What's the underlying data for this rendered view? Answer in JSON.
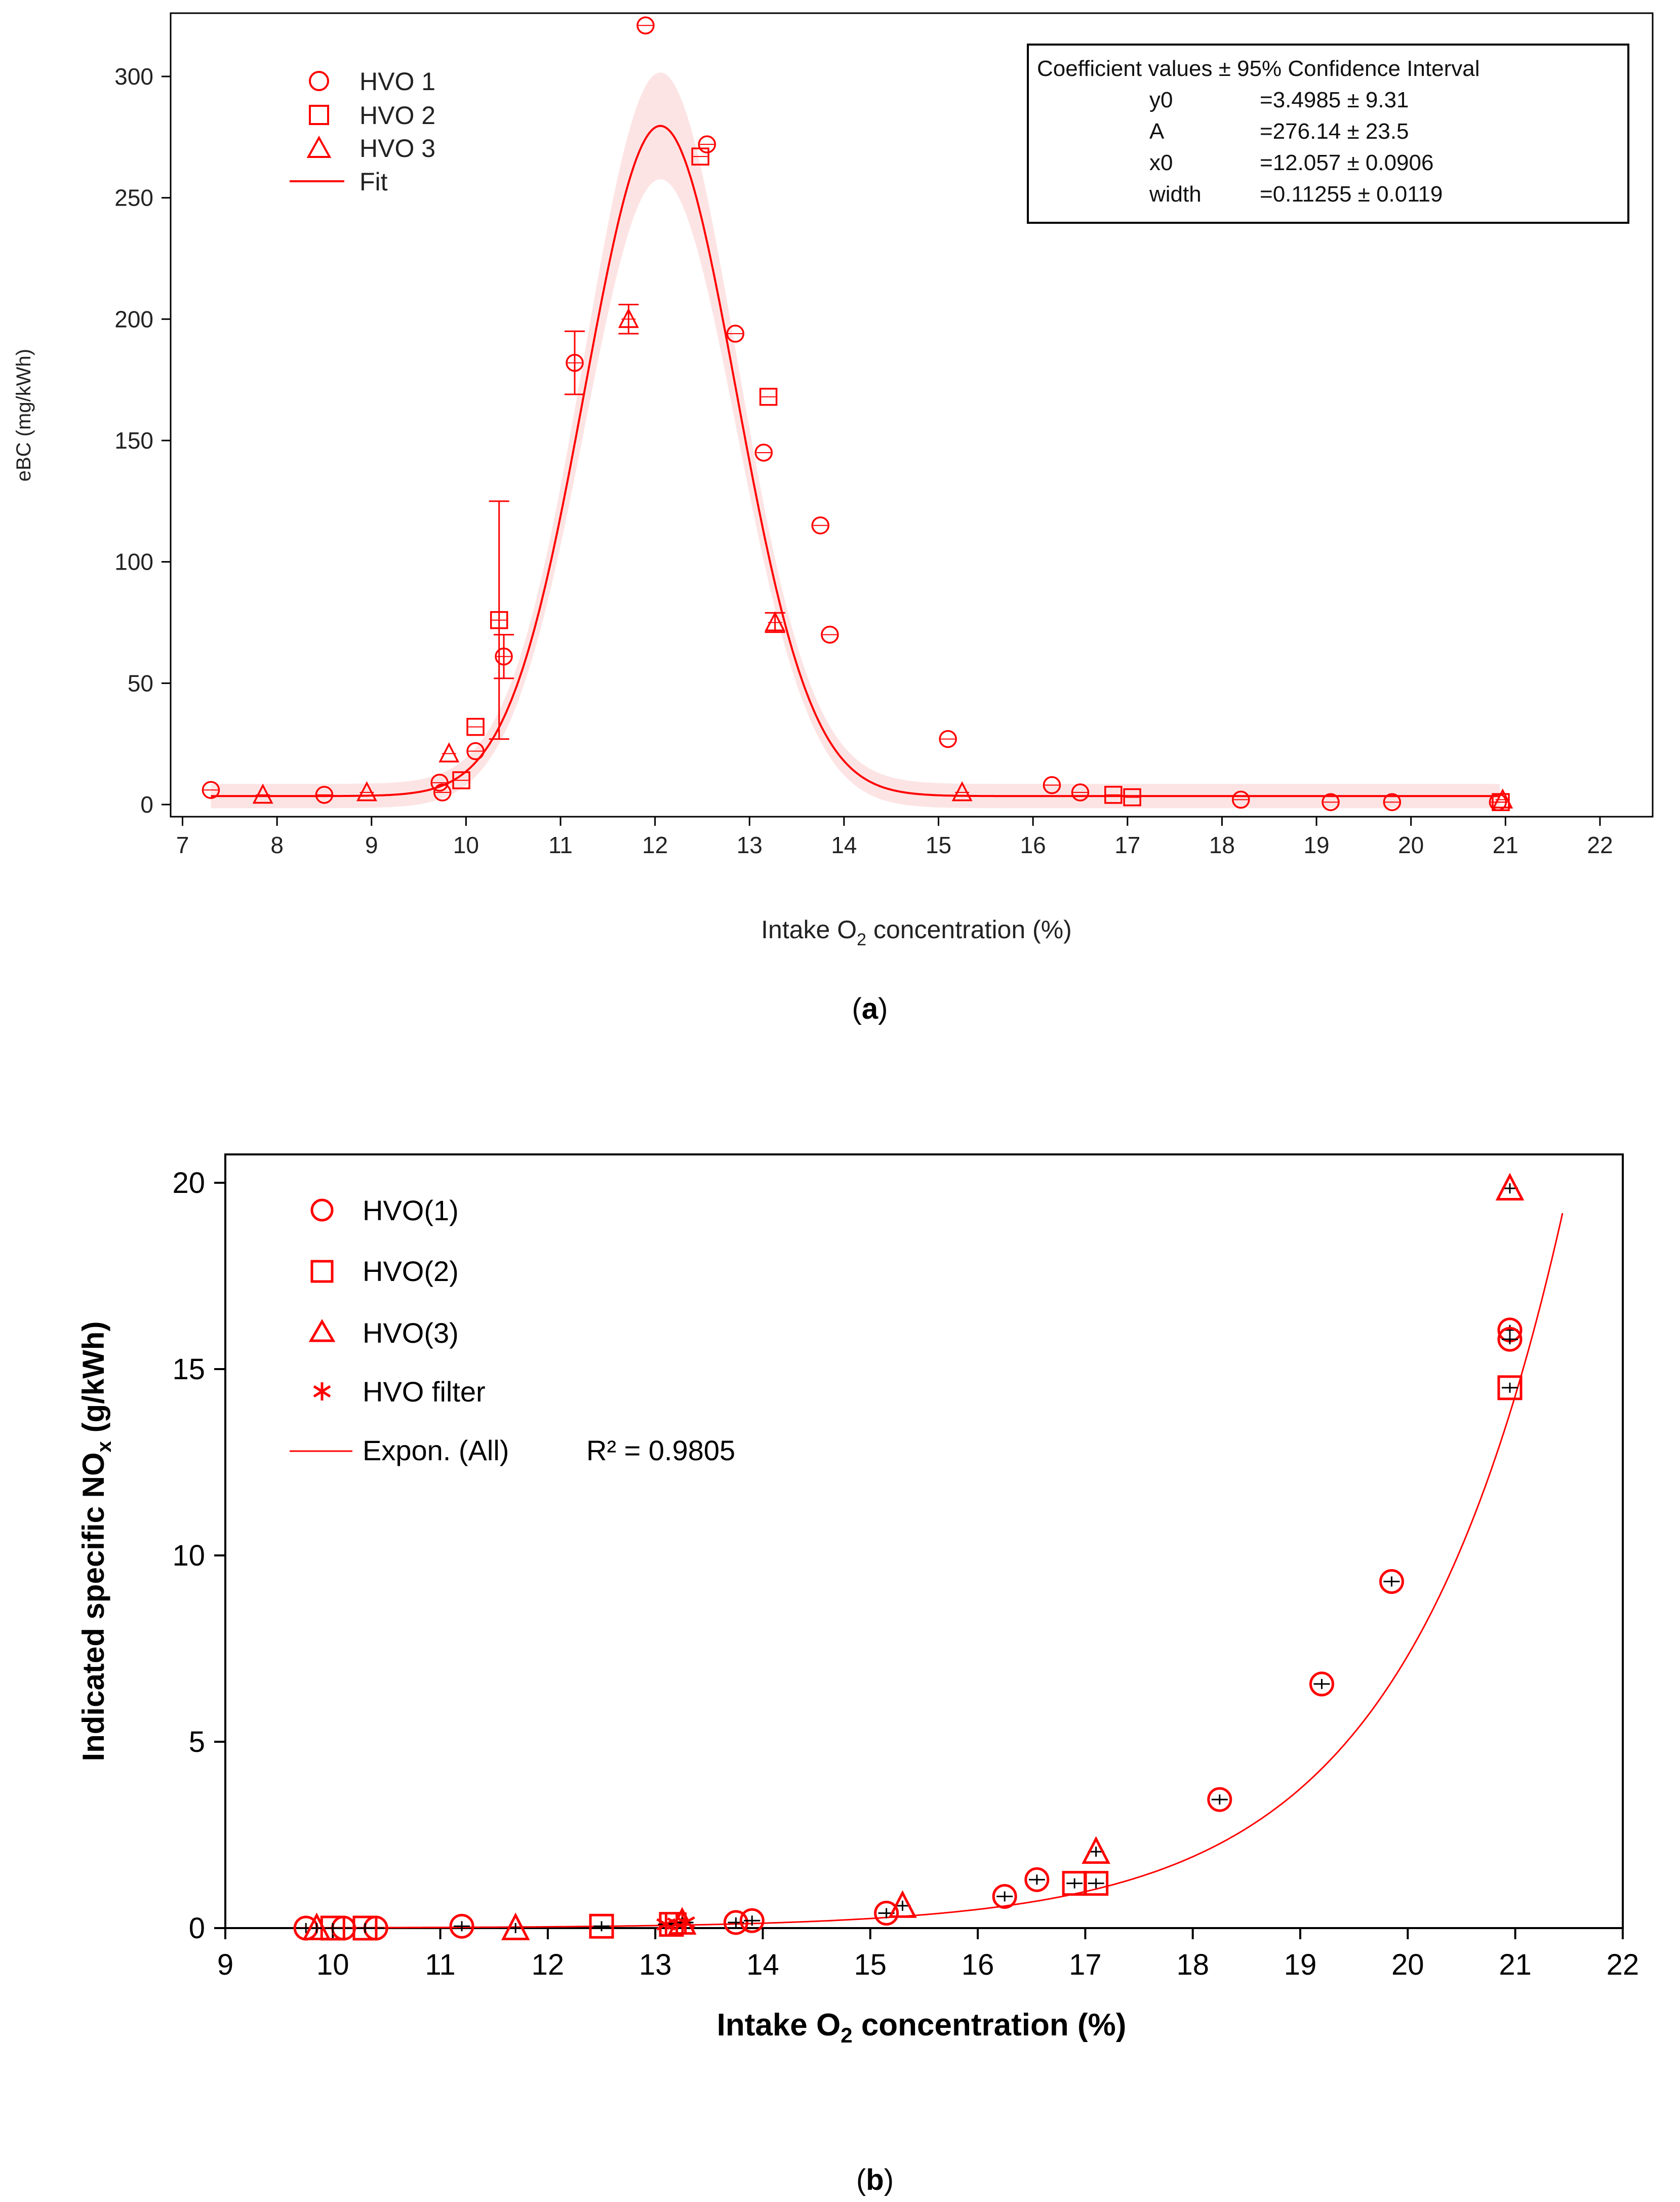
{
  "colors": {
    "accent": "#ff0000",
    "band": "#fde4e4",
    "axis": "#000000",
    "errbar_b": "#000000"
  },
  "chart_data": [
    {
      "id": "a",
      "caption_label": "a",
      "type": "scatter",
      "xlabel_main": "Intake O",
      "xlabel_sub": "2",
      "xlabel_tail": " concentration (%)",
      "ylabel": "eBC  (mg/kWh)",
      "xlim": [
        6.9,
        22.1
      ],
      "ylim": [
        -5,
        325
      ],
      "xticks": [
        7,
        8,
        9,
        10,
        11,
        12,
        13,
        14,
        15,
        16,
        17,
        18,
        19,
        20,
        21,
        22
      ],
      "yticks": [
        0,
        50,
        100,
        150,
        200,
        250,
        300
      ],
      "legend": [
        {
          "marker": "circle",
          "label": "HVO 1"
        },
        {
          "marker": "square",
          "label": "HVO 2"
        },
        {
          "marker": "triangle",
          "label": "HVO 3"
        },
        {
          "marker": "line",
          "label": "Fit"
        }
      ],
      "coef_box": {
        "title": "Coefficient values ± 95% Confidence Interval",
        "rows": [
          {
            "name": "y0",
            "value": "=3.4985 ± 9.31"
          },
          {
            "name": "A",
            "value": "=276.14 ± 23.5"
          },
          {
            "name": "x0",
            "value": "=12.057 ± 0.0906"
          },
          {
            "name": "width",
            "value": "=0.11255 ± 0.0119"
          }
        ]
      },
      "fit": {
        "model": "gaussian",
        "y0": 3.4985,
        "A": 276.14,
        "x0": 12.057,
        "sigma": 0.8,
        "x_range": [
          7.3,
          20.95
        ],
        "band_halfwidth_peak": 22,
        "band_halfwidth_base": 5
      },
      "series": [
        {
          "name": "HVO 1",
          "marker": "circle",
          "points": [
            {
              "x": 7.3,
              "y": 6
            },
            {
              "x": 8.5,
              "y": 4
            },
            {
              "x": 9.72,
              "y": 9
            },
            {
              "x": 9.75,
              "y": 5
            },
            {
              "x": 10.1,
              "y": 22
            },
            {
              "x": 10.4,
              "y": 61,
              "err": 9
            },
            {
              "x": 11.15,
              "y": 182,
              "err": 13
            },
            {
              "x": 11.9,
              "y": 321
            },
            {
              "x": 12.55,
              "y": 272
            },
            {
              "x": 12.85,
              "y": 194
            },
            {
              "x": 13.15,
              "y": 145
            },
            {
              "x": 13.75,
              "y": 115
            },
            {
              "x": 13.85,
              "y": 70
            },
            {
              "x": 15.1,
              "y": 27
            },
            {
              "x": 16.2,
              "y": 8
            },
            {
              "x": 16.5,
              "y": 5
            },
            {
              "x": 18.2,
              "y": 2
            },
            {
              "x": 19.15,
              "y": 1
            },
            {
              "x": 19.8,
              "y": 1
            },
            {
              "x": 20.92,
              "y": 1
            }
          ]
        },
        {
          "name": "HVO 2",
          "marker": "square",
          "points": [
            {
              "x": 9.95,
              "y": 10
            },
            {
              "x": 10.1,
              "y": 32
            },
            {
              "x": 10.35,
              "y": 76,
              "err": 49
            },
            {
              "x": 12.48,
              "y": 267
            },
            {
              "x": 13.2,
              "y": 168
            },
            {
              "x": 16.85,
              "y": 4
            },
            {
              "x": 17.05,
              "y": 3
            },
            {
              "x": 20.95,
              "y": 1
            }
          ]
        },
        {
          "name": "HVO 3",
          "marker": "triangle",
          "points": [
            {
              "x": 7.85,
              "y": 4
            },
            {
              "x": 8.95,
              "y": 5
            },
            {
              "x": 9.82,
              "y": 21
            },
            {
              "x": 11.72,
              "y": 200,
              "err": 6
            },
            {
              "x": 13.27,
              "y": 75,
              "err": 4
            },
            {
              "x": 15.25,
              "y": 5
            },
            {
              "x": 20.97,
              "y": 2
            }
          ]
        }
      ]
    },
    {
      "id": "b",
      "caption_label": "b",
      "type": "scatter",
      "xlabel_main": "Intake O",
      "xlabel_sub": "2",
      "xlabel_tail": " concentration (%)",
      "ylabel_main": "Indicated specific NO",
      "ylabel_sub": "x",
      "ylabel_tail": " (g/kWh)",
      "xlim": [
        9,
        22
      ],
      "ylim": [
        0,
        21
      ],
      "xticks": [
        9,
        10,
        11,
        12,
        13,
        14,
        15,
        16,
        17,
        18,
        19,
        20,
        21,
        22
      ],
      "yticks": [
        0,
        5,
        10,
        15,
        20
      ],
      "legend": [
        {
          "marker": "circle",
          "label": "HVO(1)"
        },
        {
          "marker": "square",
          "label": "HVO(2)"
        },
        {
          "marker": "triangle",
          "label": "HVO(3)"
        },
        {
          "marker": "asterisk",
          "label": "HVO filter"
        },
        {
          "marker": "line",
          "label": "Expon. (All)"
        }
      ],
      "r2_label": "R² = 0.9805",
      "fit": {
        "model": "exponential",
        "a": 1.11e-05,
        "b": 0.6699,
        "x_range": [
          9.7,
          21.45
        ]
      },
      "series": [
        {
          "name": "HVO(1)",
          "marker": "circle",
          "points": [
            {
              "x": 9.75,
              "y": 0
            },
            {
              "x": 10.1,
              "y": 0
            },
            {
              "x": 10.4,
              "y": 0
            },
            {
              "x": 11.2,
              "y": 0.05
            },
            {
              "x": 13.75,
              "y": 0.15
            },
            {
              "x": 13.9,
              "y": 0.2
            },
            {
              "x": 15.15,
              "y": 0.4
            },
            {
              "x": 16.25,
              "y": 0.85
            },
            {
              "x": 16.55,
              "y": 1.3
            },
            {
              "x": 18.25,
              "y": 3.45
            },
            {
              "x": 19.2,
              "y": 6.55
            },
            {
              "x": 19.85,
              "y": 9.3
            },
            {
              "x": 20.95,
              "y": 16.05
            },
            {
              "x": 20.95,
              "y": 15.8
            }
          ]
        },
        {
          "name": "HVO(2)",
          "marker": "square",
          "points": [
            {
              "x": 10.0,
              "y": 0
            },
            {
              "x": 10.3,
              "y": 0
            },
            {
              "x": 12.5,
              "y": 0.05
            },
            {
              "x": 13.15,
              "y": 0.1
            },
            {
              "x": 16.9,
              "y": 1.2
            },
            {
              "x": 17.1,
              "y": 1.2
            },
            {
              "x": 20.95,
              "y": 14.5
            }
          ]
        },
        {
          "name": "HVO(3)",
          "marker": "triangle",
          "points": [
            {
              "x": 9.85,
              "y": 0
            },
            {
              "x": 11.7,
              "y": 0
            },
            {
              "x": 13.25,
              "y": 0.15
            },
            {
              "x": 15.3,
              "y": 0.6
            },
            {
              "x": 17.1,
              "y": 2.05
            },
            {
              "x": 20.95,
              "y": 19.85
            }
          ]
        },
        {
          "name": "HVO filter",
          "marker": "asterisk",
          "points": [
            {
              "x": 13.1,
              "y": 0.1
            },
            {
              "x": 13.2,
              "y": 0.12
            },
            {
              "x": 13.28,
              "y": 0.15
            }
          ]
        }
      ]
    }
  ]
}
